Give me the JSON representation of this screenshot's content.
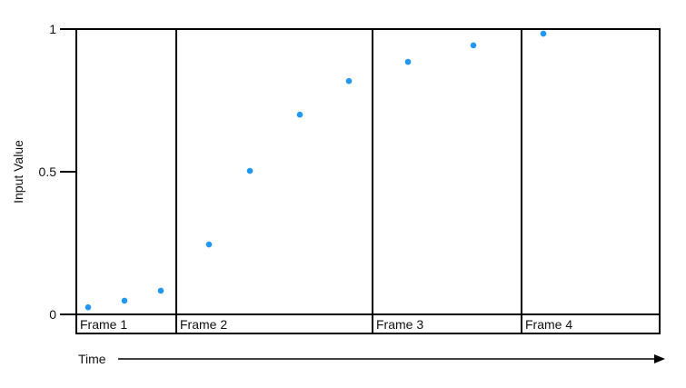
{
  "chart_data": {
    "type": "scatter",
    "title": "",
    "ylabel": "Input Value",
    "xlabel": "Time",
    "ylim": [
      0,
      1
    ],
    "yticks": [
      "0",
      "0.5",
      "1"
    ],
    "ytick_values": [
      0,
      0.5,
      1
    ],
    "grid": false,
    "point_color": "#2196F3",
    "frames": [
      {
        "label": "Frame 1",
        "values": [
          0.025,
          0.048,
          0.083
        ]
      },
      {
        "label": "Frame 2",
        "values": [
          0.245,
          0.503,
          0.7,
          0.818
        ]
      },
      {
        "label": "Frame 3",
        "values": [
          0.885,
          0.943
        ]
      },
      {
        "label": "Frame 4",
        "values": [
          0.984
        ]
      }
    ]
  }
}
